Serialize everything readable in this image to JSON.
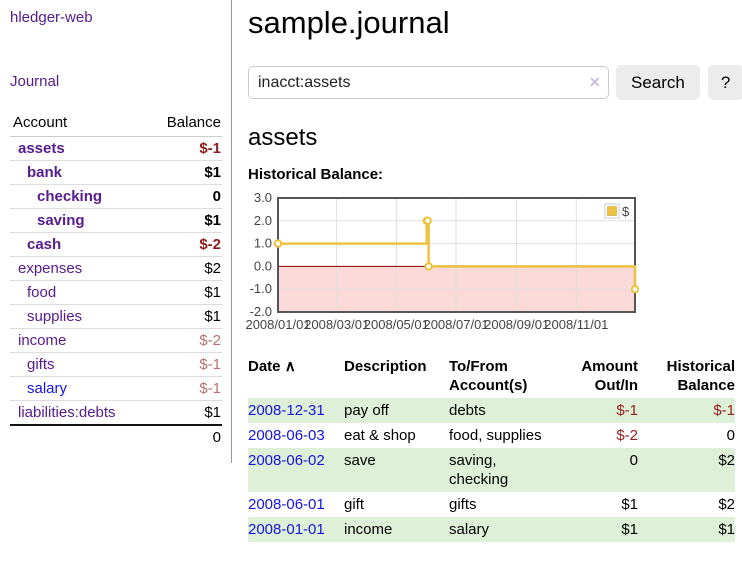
{
  "colors": {
    "link_purple": "#561b8f",
    "link_blue": "#1414dd",
    "negative_strong": "#8e1b1b",
    "negative_soft": "#b87070",
    "table_negative": "#952020",
    "row_shade_green": "#dff0d8",
    "chart_line": "#edc240",
    "chart_negative_region": "#fbd9d9",
    "chart_zero_line": "#8b0000"
  },
  "sidebar": {
    "brand": "hledger-web",
    "nav_journal": "Journal",
    "accounts_table": {
      "headers": {
        "account": "Account",
        "balance": "Balance"
      },
      "rows": [
        {
          "name": "assets",
          "indent": 1,
          "bold": true,
          "balance": "$-1",
          "balance_style": "neg-strong"
        },
        {
          "name": "bank",
          "indent": 2,
          "bold": true,
          "balance": "$1",
          "balance_style": "normal"
        },
        {
          "name": "checking",
          "indent": 3,
          "bold": true,
          "balance": "0",
          "balance_style": "normal"
        },
        {
          "name": "saving",
          "indent": 3,
          "bold": true,
          "balance": "$1",
          "balance_style": "normal"
        },
        {
          "name": "cash",
          "indent": 2,
          "bold": true,
          "balance": "$-2",
          "balance_style": "neg-strong"
        },
        {
          "name": "expenses",
          "indent": 1,
          "bold": false,
          "balance": "$2",
          "balance_style": "normal"
        },
        {
          "name": "food",
          "indent": 2,
          "bold": false,
          "balance": "$1",
          "balance_style": "normal"
        },
        {
          "name": "supplies",
          "indent": 2,
          "bold": false,
          "balance": "$1",
          "balance_style": "normal"
        },
        {
          "name": "income",
          "indent": 1,
          "bold": false,
          "balance": "$-2",
          "balance_style": "neg-soft"
        },
        {
          "name": "gifts",
          "indent": 2,
          "bold": false,
          "balance": "$-1",
          "balance_style": "neg-soft"
        },
        {
          "name": "salary",
          "indent": 2,
          "bold": false,
          "link_style": "unvisited",
          "balance": "$-1",
          "balance_style": "neg-soft"
        },
        {
          "name": "liabilities:debts",
          "indent": 1,
          "bold": false,
          "balance": "$1",
          "balance_style": "normal"
        }
      ],
      "total": "0"
    }
  },
  "header": {
    "title": "sample.journal"
  },
  "search": {
    "value": "inacct:assets",
    "clear_icon": "×",
    "button_label": "Search",
    "help_label": "?"
  },
  "page": {
    "heading": "assets",
    "chart_label": "Historical Balance:"
  },
  "chart_data": {
    "type": "line",
    "title": "Historical Balance:",
    "steps": true,
    "x_range_days": [
      0,
      365
    ],
    "ylim": [
      -2,
      3
    ],
    "series": [
      {
        "name": "$",
        "color": "#edc240",
        "points": [
          {
            "date": "2008-01-01",
            "day": 0,
            "value": 1
          },
          {
            "date": "2008-06-01",
            "day": 152,
            "value": 2
          },
          {
            "date": "2008-06-02",
            "day": 153,
            "value": 2
          },
          {
            "date": "2008-06-03",
            "day": 154,
            "value": 0
          },
          {
            "date": "2008-12-31",
            "day": 365,
            "value": -1
          }
        ]
      }
    ],
    "x_ticks": [
      {
        "day": 0,
        "label": "2008/01/01"
      },
      {
        "day": 60,
        "label": "2008/03/01"
      },
      {
        "day": 121,
        "label": "2008/05/01"
      },
      {
        "day": 182,
        "label": "2008/07/01"
      },
      {
        "day": 244,
        "label": "2008/09/01"
      },
      {
        "day": 305,
        "label": "2008/11/01"
      }
    ],
    "y_ticks": [
      {
        "value": 3,
        "label": "3.0"
      },
      {
        "value": 2,
        "label": "2.0"
      },
      {
        "value": 1,
        "label": "1.0"
      },
      {
        "value": 0,
        "label": "0.0"
      },
      {
        "value": -1,
        "label": "-1.0"
      },
      {
        "value": -2,
        "label": "-2.0"
      }
    ],
    "grid_color": "#e0e0e0",
    "negative_region_color": "#fbd9d9",
    "zero_line_color": "#8b0000",
    "legend": {
      "label": "$",
      "position": "top-right"
    }
  },
  "transactions": {
    "sort_arrow": "∧",
    "columns": {
      "date": "Date",
      "description": "Description",
      "accounts": "To/From Account(s)",
      "amount": "Amount Out/In",
      "balance": "Historical Balance"
    },
    "rows": [
      {
        "date": "2008-12-31",
        "description": "pay off",
        "accounts": "debts",
        "amount": "$-1",
        "amount_negative": true,
        "balance": "$-1",
        "balance_negative": true,
        "shaded": true
      },
      {
        "date": "2008-06-03",
        "description": "eat & shop",
        "accounts": "food, supplies",
        "amount": "$-2",
        "amount_negative": true,
        "balance": "0",
        "balance_negative": false,
        "shaded": false
      },
      {
        "date": "2008-06-02",
        "description": "save",
        "accounts": "saving, checking",
        "amount": "0",
        "amount_negative": false,
        "balance": "$2",
        "balance_negative": false,
        "shaded": true
      },
      {
        "date": "2008-06-01",
        "description": "gift",
        "accounts": "gifts",
        "amount": "$1",
        "amount_negative": false,
        "balance": "$2",
        "balance_negative": false,
        "shaded": false
      },
      {
        "date": "2008-01-01",
        "description": "income",
        "accounts": "salary",
        "amount": "$1",
        "amount_negative": false,
        "balance": "$1",
        "balance_negative": false,
        "shaded": true
      }
    ]
  }
}
